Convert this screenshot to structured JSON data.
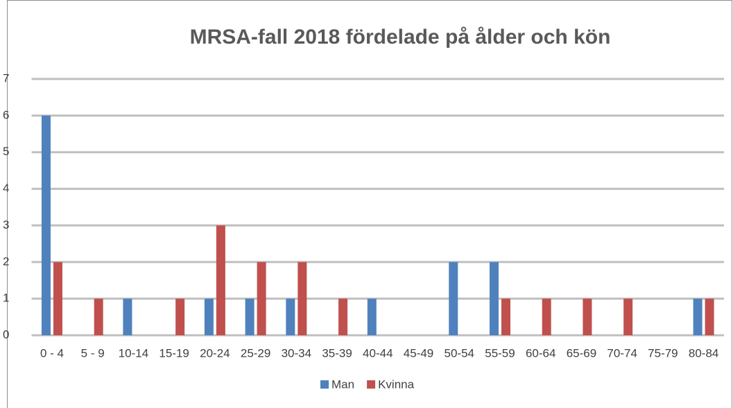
{
  "chart_data": {
    "type": "bar",
    "title": "MRSA-fall 2018 fördelade på ålder och kön",
    "categories": [
      "0 - 4",
      "5 - 9",
      "10-14",
      "15-19",
      "20-24",
      "25-29",
      "30-34",
      "35-39",
      "40-44",
      "45-49",
      "50-54",
      "55-59",
      "60-64",
      "65-69",
      "70-74",
      "75-79",
      "80-84"
    ],
    "series": [
      {
        "name": "Man",
        "color": "#4f81bd",
        "values": [
          6,
          0,
          1,
          0,
          1,
          1,
          1,
          0,
          1,
          0,
          2,
          2,
          0,
          0,
          0,
          0,
          1
        ]
      },
      {
        "name": "Kvinna",
        "color": "#c0504d",
        "values": [
          2,
          1,
          0,
          1,
          3,
          2,
          2,
          1,
          0,
          0,
          0,
          1,
          1,
          1,
          1,
          0,
          1
        ]
      }
    ],
    "ylim": [
      0,
      7
    ],
    "yticks": [
      0,
      1,
      2,
      3,
      4,
      5,
      6,
      7
    ],
    "grid": true,
    "legend": "bottom"
  }
}
